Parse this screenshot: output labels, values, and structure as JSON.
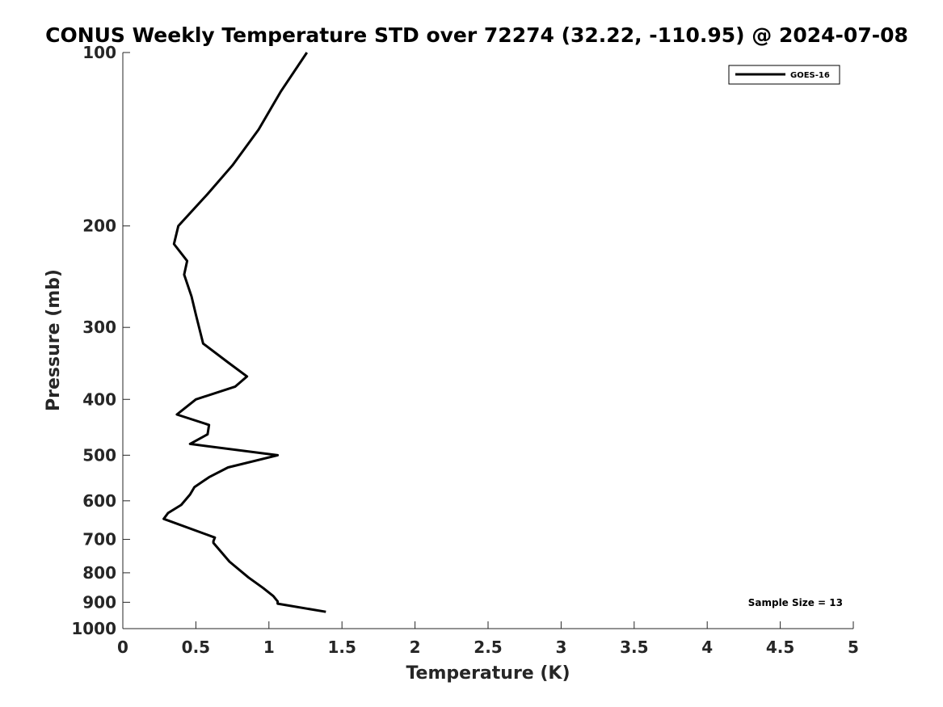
{
  "chart_data": {
    "type": "line",
    "title": "CONUS Weekly Temperature STD over 72274 (32.22, -110.95) @ 2024-07-08",
    "xlabel": "Temperature (K)",
    "ylabel": "Pressure (mb)",
    "xlim": [
      0,
      5
    ],
    "ylim": [
      100,
      1000
    ],
    "yscale": "log",
    "y_reversed": true,
    "xticks": [
      0,
      0.5,
      1,
      1.5,
      2,
      2.5,
      3,
      3.5,
      4,
      4.5,
      5
    ],
    "xtick_labels": [
      "0",
      "0.5",
      "1",
      "1.5",
      "2",
      "2.5",
      "3",
      "3.5",
      "4",
      "4.5",
      "5"
    ],
    "yticks": [
      100,
      200,
      300,
      400,
      500,
      600,
      700,
      800,
      900,
      1000
    ],
    "ytick_labels": [
      "100",
      "200",
      "300",
      "400",
      "500",
      "600",
      "700",
      "800",
      "900",
      "1000"
    ],
    "grid": false,
    "legend_position": "top-right",
    "series": [
      {
        "name": "GOES-16",
        "color": "#000000",
        "x": [
          1.26,
          1.08,
          0.93,
          0.75,
          0.58,
          0.38,
          0.35,
          0.44,
          0.42,
          0.47,
          0.5,
          0.55,
          0.72,
          0.85,
          0.77,
          0.5,
          0.37,
          0.59,
          0.58,
          0.46,
          1.06,
          0.72,
          0.59,
          0.49,
          0.46,
          0.4,
          0.31,
          0.28,
          0.63,
          0.62,
          0.62,
          0.73,
          0.86,
          0.96,
          1.03,
          1.06,
          1.06,
          1.39
        ],
        "y": [
          100,
          117,
          136,
          157,
          176,
          200,
          215,
          230,
          243,
          265,
          285,
          320,
          345,
          365,
          380,
          400,
          425,
          443,
          460,
          478,
          500,
          525,
          546,
          568,
          585,
          610,
          630,
          645,
          695,
          705,
          710,
          765,
          815,
          850,
          878,
          897,
          905,
          935
        ]
      }
    ],
    "annotations": [
      "Sample Size = 13"
    ]
  }
}
